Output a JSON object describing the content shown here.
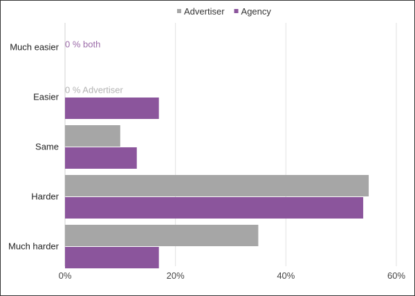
{
  "chart_data": {
    "type": "bar",
    "orientation": "horizontal",
    "categories": [
      "Much easier",
      "Easier",
      "Same",
      "Harder",
      "Much harder"
    ],
    "series": [
      {
        "name": "Advertiser",
        "color": "#a6a6a6",
        "values": [
          0,
          0,
          10,
          55,
          35
        ]
      },
      {
        "name": "Agency",
        "color": "#8b559c",
        "values": [
          0,
          17,
          13,
          54,
          17
        ]
      }
    ],
    "xlim": [
      0,
      60
    ],
    "xticks": [
      0,
      20,
      40,
      60
    ],
    "tick_suffix": "%",
    "grid": true,
    "legend_position": "top-center",
    "annotations": [
      {
        "category": "Much easier",
        "text": "0 % both",
        "color": "#9b6aa8"
      },
      {
        "category": "Easier",
        "text": "0 % Advertiser",
        "color": "#b3b3b3"
      }
    ]
  }
}
